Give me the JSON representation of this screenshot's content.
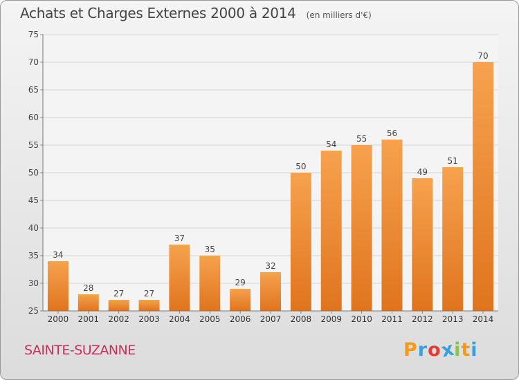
{
  "header": {
    "title": "Achats et Charges Externes 2000 à 2014",
    "unit": "(en milliers d'€)"
  },
  "footer": {
    "town": "SAINTE-SUZANNE",
    "logo_text": "Proxiti",
    "logo_colors": [
      "#f39a1e",
      "#3aa0d8",
      "#e23d36",
      "#3aa0d8",
      "#8bc34a",
      "#f39a1e",
      "#3aa0d8"
    ]
  },
  "chart_data": {
    "type": "bar",
    "title": "Achats et Charges Externes 2000 à 2014",
    "subtitle": "(en milliers d'€)",
    "xlabel": "",
    "ylabel": "",
    "categories": [
      "2000",
      "2001",
      "2002",
      "2003",
      "2004",
      "2005",
      "2006",
      "2007",
      "2008",
      "2009",
      "2010",
      "2011",
      "2012",
      "2013",
      "2014"
    ],
    "values": [
      34,
      28,
      27,
      27,
      37,
      35,
      29,
      32,
      50,
      54,
      55,
      56,
      49,
      51,
      70
    ],
    "ylim": [
      25,
      75
    ],
    "yticks": [
      25,
      30,
      35,
      40,
      45,
      50,
      55,
      60,
      65,
      70,
      75
    ],
    "grid": true,
    "bar_color_top": "#f6a24e",
    "bar_color_bottom": "#e0741e"
  }
}
